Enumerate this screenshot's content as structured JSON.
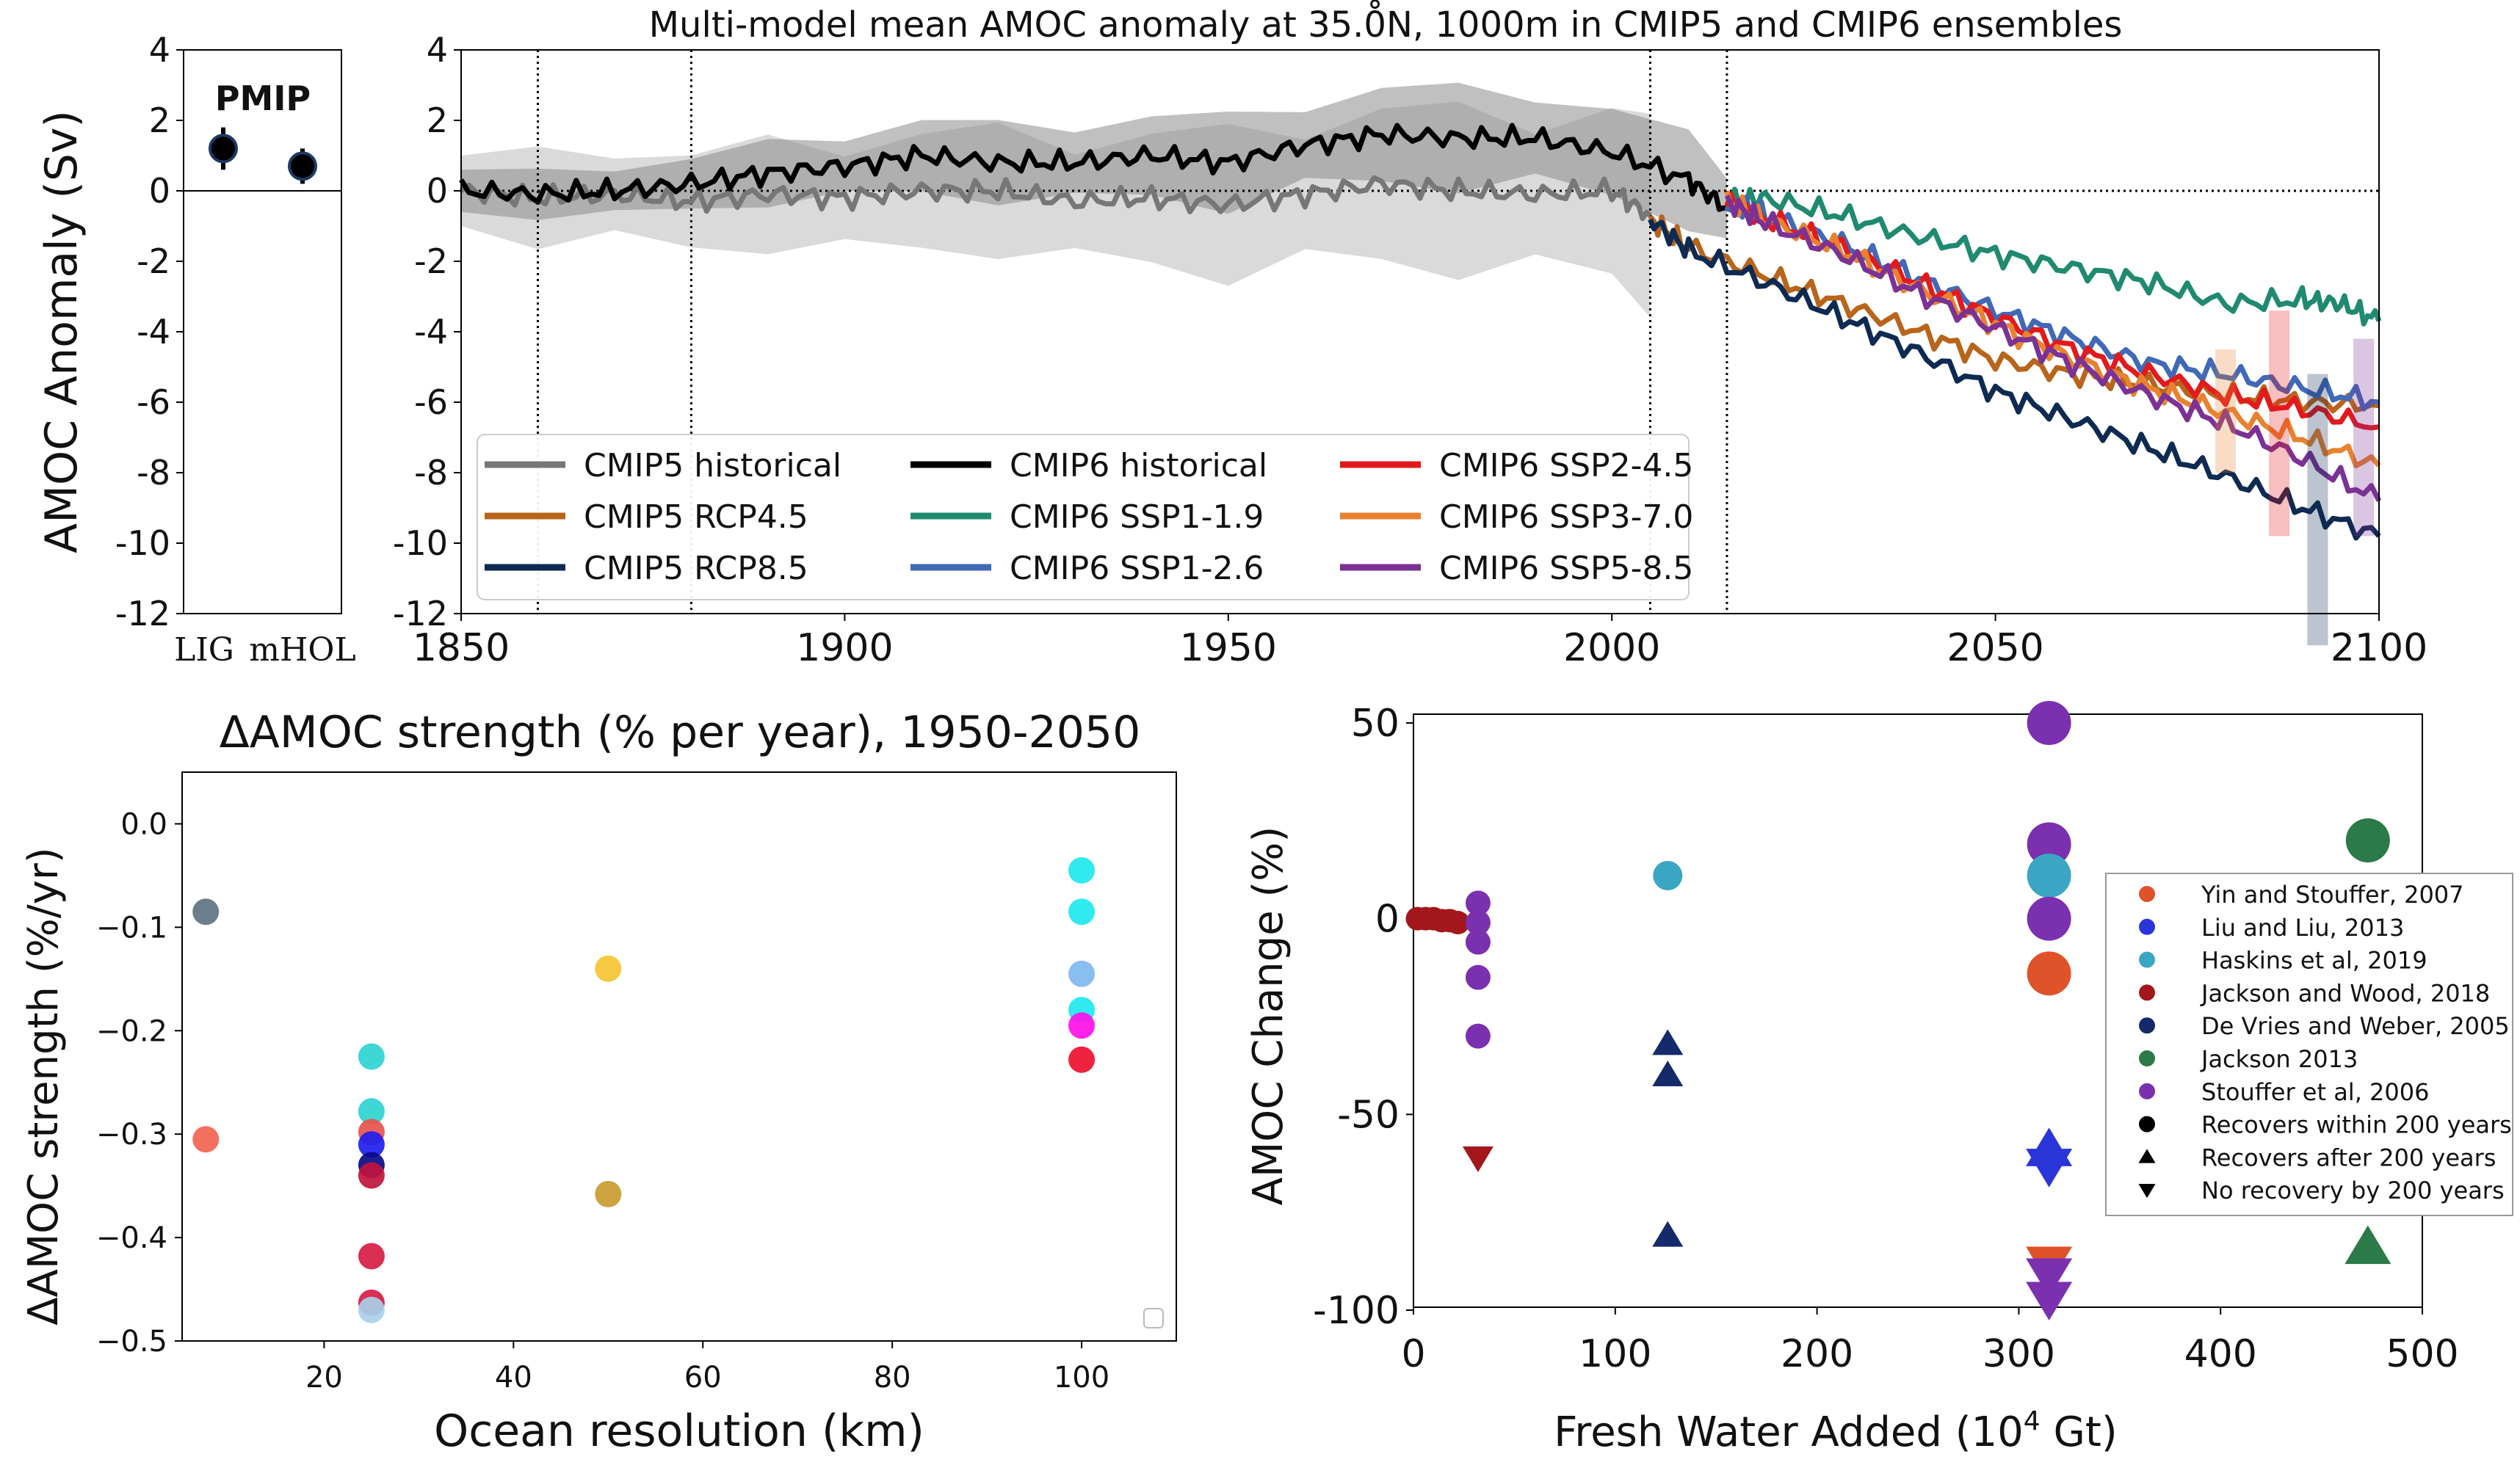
{
  "colors": {
    "cmip5_hist": "#777777",
    "cmip6_hist": "#000000",
    "rcp45": "#b8651b",
    "rcp85": "#0d2a52",
    "ssp119": "#1f8a70",
    "ssp126": "#4169b8",
    "ssp245": "#e31a1c",
    "ssp370": "#e8822f",
    "ssp585": "#7b3294"
  },
  "panel_a": {
    "title": "Multi-model mean AMOC anomaly at 35.0̊N, 1000m in CMIP5 and CMIP6 ensembles",
    "ylabel": "AMOC Anomaly (Sv)",
    "yticks": [
      "4",
      "2",
      "0",
      "-2",
      "-4",
      "-6",
      "-8",
      "-10",
      "-12"
    ],
    "xticks": [
      "1850",
      "1900",
      "1950",
      "2000",
      "2050",
      "2100"
    ],
    "pmip": {
      "label": "PMIP",
      "cats": [
        "LIG",
        "mHOL"
      ],
      "values": [
        1.2,
        0.7
      ]
    },
    "legend": [
      [
        "CMIP5 historical",
        "cmip5_hist"
      ],
      [
        "CMIP6 historical",
        "cmip6_hist"
      ],
      [
        "CMIP6 SSP2-4.5",
        "ssp245"
      ],
      [
        "CMIP5 RCP4.5",
        "rcp45"
      ],
      [
        "CMIP6 SSP1-1.9",
        "ssp119"
      ],
      [
        "CMIP6 SSP3-7.0",
        "ssp370"
      ],
      [
        "CMIP5 RCP8.5",
        "rcp85"
      ],
      [
        "CMIP6 SSP1-2.6",
        "ssp126"
      ],
      [
        "CMIP6 SSP5-8.5",
        "ssp585"
      ]
    ]
  },
  "panel_b": {
    "title": "ΔAMOC strength (% per year), 1950-2050",
    "xlabel": "Ocean resolution (km)",
    "ylabel": "ΔAMOC strength (%/yr)",
    "xticks": [
      "20",
      "40",
      "60",
      "80",
      "100"
    ],
    "yticks": [
      "0.0",
      "−0.1",
      "−0.2",
      "−0.3",
      "−0.4",
      "−0.5"
    ]
  },
  "panel_c": {
    "xlabel": "Fresh Water Added (10",
    "xlabel_sup": "4",
    "xlabel_end": " Gt)",
    "ylabel": "AMOC Change (%)",
    "xticks": [
      "0",
      "100",
      "200",
      "300",
      "400",
      "500"
    ],
    "yticks": [
      "50",
      "0",
      "-50",
      "-100"
    ],
    "legend": [
      "Yin and Stouffer, 2007",
      "Liu and Liu, 2013",
      "Haskins et al, 2019",
      "Jackson and Wood, 2018",
      "De Vries and Weber, 2005",
      "Jackson 2013",
      "Stouffer et al, 2006",
      "Recovers within 200 years",
      "Recovers after 200 years",
      "No recovery by 200 years"
    ]
  },
  "chart_data": [
    {
      "type": "line",
      "title": "Multi-model mean AMOC anomaly at 35.0̊N, 1000m in CMIP5 and CMIP6 ensembles",
      "xlabel": "",
      "ylabel": "AMOC Anomaly (Sv)",
      "xlim": [
        1850,
        2100
      ],
      "ylim": [
        -12,
        4
      ],
      "vlines": [
        1860,
        1880,
        2005,
        2015
      ],
      "series": [
        {
          "name": "CMIP5 historical",
          "key": "cmip5_hist",
          "x": [
            1850,
            1860,
            1870,
            1880,
            1890,
            1900,
            1910,
            1920,
            1930,
            1940,
            1950,
            1960,
            1970,
            1980,
            1990,
            2000,
            2005
          ],
          "y": [
            0,
            -0.2,
            -0.1,
            -0.3,
            -0.1,
            -0.2,
            0,
            0,
            -0.3,
            -0.2,
            -0.4,
            -0.1,
            0.2,
            0,
            -0.1,
            0,
            -0.7
          ],
          "band": [
            1.0,
            1.2,
            1.3,
            1.3,
            1.4,
            1.5,
            1.6,
            1.6,
            1.7,
            1.8,
            1.9,
            2.0,
            2.1,
            2.1,
            2.2,
            2.3,
            2.4
          ]
        },
        {
          "name": "CMIP6 historical",
          "key": "cmip6_hist",
          "x": [
            1850,
            1860,
            1870,
            1880,
            1890,
            1900,
            1910,
            1920,
            1930,
            1940,
            1950,
            1960,
            1970,
            1980,
            1990,
            2000,
            2010,
            2015
          ],
          "y": [
            0,
            -0.1,
            0,
            0.2,
            0.5,
            0.7,
            1.0,
            0.8,
            0.8,
            1.0,
            0.8,
            1.3,
            1.6,
            1.5,
            1.5,
            1.1,
            0.3,
            -0.5
          ],
          "band": [
            0.6,
            0.6,
            0.7,
            0.7,
            0.8,
            0.9,
            1.0,
            1.0,
            1.1,
            1.1,
            1.2,
            1.2,
            1.3,
            1.3,
            1.3,
            1.2,
            1.2,
            1.1
          ]
        },
        {
          "name": "CMIP5 RCP4.5",
          "key": "rcp45",
          "x": [
            2005,
            2010,
            2020,
            2030,
            2040,
            2050,
            2060,
            2070,
            2080,
            2090,
            2100
          ],
          "y": [
            -0.8,
            -1.6,
            -2.4,
            -3.2,
            -4.0,
            -4.8,
            -5.2,
            -5.5,
            -5.8,
            -6.0,
            -6.1
          ]
        },
        {
          "name": "CMIP5 RCP8.5",
          "key": "rcp85",
          "x": [
            2005,
            2010,
            2020,
            2030,
            2040,
            2050,
            2060,
            2070,
            2080,
            2090,
            2100
          ],
          "y": [
            -0.8,
            -1.7,
            -2.6,
            -3.6,
            -4.6,
            -5.7,
            -6.5,
            -7.3,
            -8.1,
            -9.0,
            -9.8
          ]
        },
        {
          "name": "CMIP6 SSP1-1.9",
          "key": "ssp119",
          "x": [
            2015,
            2020,
            2030,
            2040,
            2050,
            2060,
            2070,
            2080,
            2090,
            2095,
            2100
          ],
          "y": [
            -0.3,
            -0.2,
            -0.7,
            -1.3,
            -1.8,
            -2.2,
            -2.6,
            -3.2,
            -3.1,
            -3.2,
            -3.7
          ]
        },
        {
          "name": "CMIP6 SSP1-2.6",
          "key": "ssp126",
          "x": [
            2015,
            2020,
            2030,
            2040,
            2050,
            2060,
            2070,
            2080,
            2090,
            2100
          ],
          "y": [
            -0.3,
            -0.7,
            -1.5,
            -2.5,
            -3.4,
            -4.2,
            -4.9,
            -5.2,
            -5.6,
            -6.0
          ]
        },
        {
          "name": "CMIP6 SSP2-4.5",
          "key": "ssp245",
          "x": [
            2015,
            2020,
            2030,
            2040,
            2050,
            2060,
            2070,
            2080,
            2090,
            2100
          ],
          "y": [
            -0.3,
            -0.8,
            -1.6,
            -2.6,
            -3.6,
            -4.5,
            -5.2,
            -5.8,
            -6.2,
            -6.7
          ]
        },
        {
          "name": "CMIP6 SSP3-7.0",
          "key": "ssp370",
          "x": [
            2015,
            2020,
            2030,
            2040,
            2050,
            2060,
            2070,
            2080,
            2090,
            2100
          ],
          "y": [
            -0.3,
            -0.8,
            -1.7,
            -2.8,
            -3.8,
            -4.8,
            -5.6,
            -6.3,
            -7.0,
            -7.8
          ]
        },
        {
          "name": "CMIP6 SSP5-8.5",
          "key": "ssp585",
          "x": [
            2015,
            2020,
            2030,
            2040,
            2050,
            2060,
            2070,
            2080,
            2090,
            2100
          ],
          "y": [
            -0.3,
            -0.9,
            -1.8,
            -2.9,
            -3.9,
            -4.9,
            -5.8,
            -6.6,
            -7.6,
            -8.8
          ]
        }
      ],
      "end_ranges": [
        {
          "key": "ssp370",
          "x": 2080,
          "lo": -8,
          "hi": -4.5
        },
        {
          "key": "ssp245",
          "x": 2087,
          "lo": -9.8,
          "hi": -3.4
        },
        {
          "key": "rcp85",
          "x": 2092,
          "lo": -12.9,
          "hi": -5.2
        },
        {
          "key": "ssp585",
          "x": 2098,
          "lo": -9.8,
          "hi": -4.2
        }
      ],
      "pmip": {
        "categories": [
          "LIG",
          "mHOL"
        ],
        "values": [
          1.2,
          0.7
        ],
        "err": [
          0.6,
          0.5
        ]
      }
    },
    {
      "type": "scatter",
      "title": "ΔAMOC strength (% per year), 1950-2050",
      "xlabel": "Ocean resolution (km)",
      "ylabel": "ΔAMOC strength (%/yr)",
      "xlim": [
        5,
        110
      ],
      "ylim": [
        -0.5,
        0.05
      ],
      "points": [
        {
          "x": 7.5,
          "y": -0.085,
          "color": "#5f7384"
        },
        {
          "x": 7.5,
          "y": -0.305,
          "color": "#f26450"
        },
        {
          "x": 25,
          "y": -0.225,
          "color": "#2fd3d3"
        },
        {
          "x": 25,
          "y": -0.278,
          "color": "#2fd3d3"
        },
        {
          "x": 25,
          "y": -0.298,
          "color": "#e8524e"
        },
        {
          "x": 25,
          "y": -0.31,
          "color": "#1e1ef0"
        },
        {
          "x": 25,
          "y": -0.33,
          "color": "#0a0a8a"
        },
        {
          "x": 25,
          "y": -0.34,
          "color": "#c0143c"
        },
        {
          "x": 25,
          "y": -0.418,
          "color": "#d81c44"
        },
        {
          "x": 25,
          "y": -0.463,
          "color": "#d81c44"
        },
        {
          "x": 25,
          "y": -0.47,
          "color": "#a8d0ea"
        },
        {
          "x": 50,
          "y": -0.14,
          "color": "#f4c430"
        },
        {
          "x": 50,
          "y": -0.358,
          "color": "#c89b2e"
        },
        {
          "x": 100,
          "y": -0.045,
          "color": "#1ee8ee"
        },
        {
          "x": 100,
          "y": -0.085,
          "color": "#1ee8ee"
        },
        {
          "x": 100,
          "y": -0.145,
          "color": "#7fb8f0"
        },
        {
          "x": 100,
          "y": -0.18,
          "color": "#1ee8ee"
        },
        {
          "x": 100,
          "y": -0.195,
          "color": "#ff10e8"
        },
        {
          "x": 100,
          "y": -0.228,
          "color": "#ee1030"
        }
      ]
    },
    {
      "type": "scatter",
      "title": "",
      "xlabel": "Fresh Water Added (10^4 Gt)",
      "ylabel": "AMOC Change (%)",
      "xlim": [
        0,
        500
      ],
      "ylim": [
        -100,
        50
      ],
      "series_colors": {
        "Yin and Stouffer, 2007": "#e0522a",
        "Liu and Liu, 2013": "#2a35d8",
        "Haskins et al, 2019": "#3aa6c4",
        "Jackson and Wood, 2018": "#a3171c",
        "De Vries and Weber, 2005": "#142a6a",
        "Jackson 2013": "#2b7a48",
        "Stouffer et al, 2006": "#7b30b0"
      },
      "points": [
        {
          "series": "Jackson and Wood, 2018",
          "marker": "circle",
          "x": 2,
          "y": 0
        },
        {
          "series": "Jackson and Wood, 2018",
          "marker": "circle",
          "x": 6,
          "y": 0
        },
        {
          "series": "Jackson and Wood, 2018",
          "marker": "circle",
          "x": 10,
          "y": 0
        },
        {
          "series": "Jackson and Wood, 2018",
          "marker": "circle",
          "x": 14,
          "y": -0.5
        },
        {
          "series": "Jackson and Wood, 2018",
          "marker": "circle",
          "x": 18,
          "y": -0.5
        },
        {
          "series": "Jackson and Wood, 2018",
          "marker": "circle",
          "x": 22,
          "y": -1
        },
        {
          "series": "Jackson and Wood, 2018",
          "marker": "down",
          "x": 32,
          "y": -61
        },
        {
          "series": "Stouffer et al, 2006",
          "marker": "circle",
          "x": 32,
          "y": 4
        },
        {
          "series": "Stouffer et al, 2006",
          "marker": "circle",
          "x": 32,
          "y": -1
        },
        {
          "series": "Stouffer et al, 2006",
          "marker": "circle",
          "x": 32,
          "y": -6
        },
        {
          "series": "Stouffer et al, 2006",
          "marker": "circle",
          "x": 32,
          "y": -15
        },
        {
          "series": "Stouffer et al, 2006",
          "marker": "circle",
          "x": 32,
          "y": -30
        },
        {
          "series": "Haskins et al, 2019",
          "marker": "circle",
          "x": 126,
          "y": 11
        },
        {
          "series": "De Vries and Weber, 2005",
          "marker": "up",
          "x": 126,
          "y": -32
        },
        {
          "series": "De Vries and Weber, 2005",
          "marker": "up",
          "x": 126,
          "y": -40
        },
        {
          "series": "De Vries and Weber, 2005",
          "marker": "up",
          "x": 126,
          "y": -81
        },
        {
          "series": "Stouffer et al, 2006",
          "marker": "circle",
          "x": 315,
          "y": 50
        },
        {
          "series": "Stouffer et al, 2006",
          "marker": "circle",
          "x": 315,
          "y": 19
        },
        {
          "series": "Haskins et al, 2019",
          "marker": "circle",
          "x": 315,
          "y": 11
        },
        {
          "series": "Stouffer et al, 2006",
          "marker": "circle",
          "x": 315,
          "y": 0
        },
        {
          "series": "Yin and Stouffer, 2007",
          "marker": "circle",
          "x": 315,
          "y": -14
        },
        {
          "series": "Liu and Liu, 2013",
          "marker": "up",
          "x": 315,
          "y": -59
        },
        {
          "series": "Liu and Liu, 2013",
          "marker": "down",
          "x": 315,
          "y": -63
        },
        {
          "series": "Yin and Stouffer, 2007",
          "marker": "down",
          "x": 315,
          "y": -88
        },
        {
          "series": "Stouffer et al, 2006",
          "marker": "down",
          "x": 315,
          "y": -91
        },
        {
          "series": "Stouffer et al, 2006",
          "marker": "down",
          "x": 315,
          "y": -97
        },
        {
          "series": "Jackson 2013",
          "marker": "circle",
          "x": 473,
          "y": 20
        },
        {
          "series": "Jackson 2013",
          "marker": "up",
          "x": 473,
          "y": -84
        }
      ]
    }
  ]
}
